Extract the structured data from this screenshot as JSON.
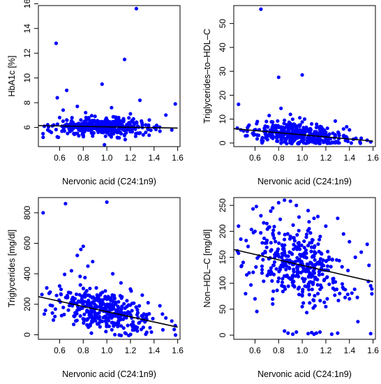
{
  "chart_data": [
    {
      "type": "scatter",
      "xlabel": "Nervonic acid (C24:1n9)",
      "ylabel": "HbA1c [%]",
      "xlim": [
        0.42,
        1.62
      ],
      "ylim": [
        4.45,
        15.85
      ],
      "x_ticks": [
        "0.6",
        "0.8",
        "1.0",
        "1.2",
        "1.4",
        "1.6"
      ],
      "y_ticks": [
        "6",
        "8",
        "10",
        "12",
        "14",
        "16"
      ],
      "point_color": "#0000ff",
      "line_color": "#000000",
      "trend": {
        "x": [
          0.42,
          1.6
        ],
        "y": [
          6.15,
          5.95
        ]
      },
      "spread": 0.32,
      "points": [
        [
          0.46,
          5.2
        ],
        [
          0.47,
          6.1
        ],
        [
          0.5,
          5.8
        ],
        [
          0.53,
          5.6
        ],
        [
          0.55,
          6.2
        ],
        [
          0.57,
          12.8
        ],
        [
          0.58,
          8.4
        ],
        [
          0.6,
          6.8
        ],
        [
          0.62,
          5.7
        ],
        [
          0.63,
          7.4
        ],
        [
          0.66,
          9.0
        ],
        [
          0.68,
          5.9
        ],
        [
          0.7,
          6.3
        ],
        [
          0.72,
          5.5
        ],
        [
          0.75,
          7.7
        ],
        [
          0.78,
          6.6
        ],
        [
          0.8,
          5.4
        ],
        [
          0.82,
          7.2
        ],
        [
          0.84,
          6.0
        ],
        [
          0.86,
          6.5
        ],
        [
          0.88,
          5.3
        ],
        [
          0.9,
          6.9
        ],
        [
          0.92,
          5.8
        ],
        [
          0.94,
          6.4
        ],
        [
          0.96,
          9.5
        ],
        [
          0.97,
          6.2
        ],
        [
          0.98,
          4.6
        ],
        [
          1.0,
          6.1
        ],
        [
          1.02,
          5.9
        ],
        [
          1.04,
          7.6
        ],
        [
          1.06,
          6.3
        ],
        [
          1.08,
          5.7
        ],
        [
          1.1,
          6.8
        ],
        [
          1.12,
          5.5
        ],
        [
          1.15,
          11.5
        ],
        [
          1.18,
          6.0
        ],
        [
          1.2,
          7.1
        ],
        [
          1.22,
          5.9
        ],
        [
          1.25,
          15.6
        ],
        [
          1.28,
          8.2
        ],
        [
          1.3,
          6.2
        ],
        [
          1.33,
          5.6
        ],
        [
          1.36,
          6.6
        ],
        [
          1.4,
          6.0
        ],
        [
          1.45,
          5.7
        ],
        [
          1.5,
          7.0
        ],
        [
          1.55,
          5.8
        ],
        [
          1.58,
          7.9
        ]
      ],
      "cloud": {
        "n": 380,
        "x_mean": 0.98,
        "x_sd": 0.2
      }
    },
    {
      "type": "scatter",
      "xlabel": "Nervonic acid (C24:1n9)",
      "ylabel": "Triglycerides–to–HDL–C",
      "xlim": [
        0.42,
        1.62
      ],
      "ylim": [
        -1.5,
        57.5
      ],
      "x_ticks": [
        "0.6",
        "0.8",
        "1.0",
        "1.2",
        "1.4",
        "1.6"
      ],
      "y_ticks": [
        "0",
        "10",
        "20",
        "30",
        "40",
        "50"
      ],
      "point_color": "#0000ff",
      "line_color": "#000000",
      "trend": {
        "x": [
          0.42,
          1.6
        ],
        "y": [
          6.0,
          0.8
        ]
      },
      "spread": 2.2,
      "points": [
        [
          0.46,
          16.2
        ],
        [
          0.48,
          5.5
        ],
        [
          0.52,
          3.0
        ],
        [
          0.55,
          7.5
        ],
        [
          0.58,
          4.0
        ],
        [
          0.62,
          9.0
        ],
        [
          0.65,
          56.0
        ],
        [
          0.68,
          6.2
        ],
        [
          0.72,
          11.5
        ],
        [
          0.75,
          8.8
        ],
        [
          0.8,
          27.5
        ],
        [
          0.82,
          14.5
        ],
        [
          0.85,
          9.5
        ],
        [
          0.9,
          12.0
        ],
        [
          0.95,
          7.0
        ],
        [
          1.0,
          28.5
        ],
        [
          1.02,
          10.0
        ],
        [
          1.08,
          8.0
        ],
        [
          1.12,
          6.5
        ],
        [
          1.2,
          4.5
        ],
        [
          1.28,
          9.2
        ],
        [
          1.35,
          3.0
        ],
        [
          1.4,
          5.5
        ],
        [
          1.5,
          2.0
        ],
        [
          1.55,
          1.2
        ],
        [
          1.58,
          0.5
        ]
      ],
      "cloud": {
        "n": 380,
        "x_mean": 0.98,
        "x_sd": 0.2
      }
    },
    {
      "type": "scatter",
      "xlabel": "Nervonic acid (C24:1n9)",
      "ylabel": "Triglycerides [mg/dl]",
      "xlim": [
        0.42,
        1.62
      ],
      "ylim": [
        -30,
        900
      ],
      "x_ticks": [
        "0.6",
        "0.8",
        "1.0",
        "1.2",
        "1.4",
        "1.6"
      ],
      "y_ticks": [
        "0",
        "200",
        "400",
        "600",
        "800"
      ],
      "point_color": "#0000ff",
      "line_color": "#000000",
      "trend": {
        "x": [
          0.42,
          1.6
        ],
        "y": [
          250,
          50
        ]
      },
      "spread": 65,
      "points": [
        [
          0.46,
          800
        ],
        [
          0.48,
          160
        ],
        [
          0.52,
          280
        ],
        [
          0.56,
          120
        ],
        [
          0.6,
          320
        ],
        [
          0.65,
          860
        ],
        [
          0.7,
          420
        ],
        [
          0.75,
          520
        ],
        [
          0.78,
          560
        ],
        [
          0.8,
          580
        ],
        [
          0.84,
          450
        ],
        [
          0.88,
          480
        ],
        [
          1.0,
          870
        ],
        [
          1.05,
          400
        ],
        [
          1.12,
          340
        ],
        [
          1.2,
          300
        ],
        [
          1.3,
          260
        ],
        [
          1.35,
          210
        ],
        [
          1.45,
          190
        ],
        [
          1.5,
          110
        ],
        [
          1.55,
          90
        ],
        [
          1.58,
          60
        ]
      ],
      "cloud": {
        "n": 380,
        "x_mean": 0.98,
        "x_sd": 0.2
      }
    },
    {
      "type": "scatter",
      "xlabel": "Nervonic acid (C24:1n9)",
      "ylabel": "Non–HDL–C [mg/dl]",
      "xlim": [
        0.42,
        1.62
      ],
      "ylim": [
        -8,
        265
      ],
      "x_ticks": [
        "0.6",
        "0.8",
        "1.0",
        "1.2",
        "1.4",
        "1.6"
      ],
      "y_ticks": [
        "0",
        "50",
        "100",
        "150",
        "200",
        "250"
      ],
      "point_color": "#0000ff",
      "line_color": "#000000",
      "trend": {
        "x": [
          0.42,
          1.6
        ],
        "y": [
          165,
          103
        ]
      },
      "spread": 35,
      "points": [
        [
          0.46,
          210
        ],
        [
          0.48,
          185
        ],
        [
          0.5,
          140
        ],
        [
          0.55,
          120
        ],
        [
          0.6,
          200
        ],
        [
          0.65,
          230
        ],
        [
          0.7,
          215
        ],
        [
          0.75,
          245
        ],
        [
          0.8,
          255
        ],
        [
          0.85,
          260
        ],
        [
          0.9,
          258
        ],
        [
          0.95,
          250
        ],
        [
          1.05,
          240
        ],
        [
          1.1,
          225
        ],
        [
          1.2,
          210
        ],
        [
          1.3,
          225
        ],
        [
          1.35,
          195
        ],
        [
          1.4,
          180
        ],
        [
          1.45,
          150
        ],
        [
          1.5,
          160
        ],
        [
          1.55,
          175
        ],
        [
          1.58,
          95
        ],
        [
          0.85,
          8
        ],
        [
          0.88,
          4
        ],
        [
          0.92,
          2
        ],
        [
          0.95,
          6
        ],
        [
          1.05,
          3
        ],
        [
          1.08,
          5
        ],
        [
          1.1,
          2
        ],
        [
          1.12,
          4
        ],
        [
          1.15,
          6
        ],
        [
          1.25,
          2
        ],
        [
          1.3,
          4
        ],
        [
          1.58,
          3
        ],
        [
          0.52,
          80
        ],
        [
          0.6,
          70
        ],
        [
          0.75,
          60
        ],
        [
          1.0,
          55
        ],
        [
          1.2,
          55
        ],
        [
          1.4,
          70
        ]
      ],
      "cloud": {
        "n": 380,
        "x_mean": 0.98,
        "x_sd": 0.2
      }
    }
  ]
}
